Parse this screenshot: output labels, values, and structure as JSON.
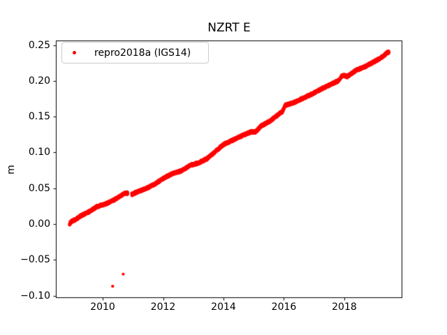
{
  "figure": {
    "background": "#ffffff",
    "text_color": "#000000",
    "spine_color": "#000000"
  },
  "chart_data": {
    "type": "scatter",
    "title": "NZRT E",
    "xlabel": "",
    "ylabel": "m",
    "xlim": [
      2008.45,
      2019.92
    ],
    "ylim": [
      -0.1034,
      0.2564
    ],
    "grid": false,
    "xticks": {
      "values": [
        2010,
        2012,
        2014,
        2016,
        2018
      ],
      "labels": [
        "2010",
        "2012",
        "2014",
        "2016",
        "2018"
      ]
    },
    "yticks": {
      "values": [
        -0.1,
        -0.05,
        0.0,
        0.05,
        0.1,
        0.15,
        0.2,
        0.25
      ],
      "labels": [
        "−0.10",
        "−0.05",
        "0.00",
        "0.05",
        "0.10",
        "0.15",
        "0.20",
        "0.25"
      ]
    },
    "legend": {
      "label": "repro2018a (IGS14)",
      "position": "upper-left",
      "marker_color": "#ff0000",
      "border_color": "#cccccc"
    },
    "series": [
      {
        "name": "repro2018a (IGS14)",
        "color": "#ff0000",
        "marker": "point",
        "marker_radius_px": 2.1,
        "sample_step_years": 0.0028,
        "noise_m": 0.002,
        "trend": {
          "start": [
            2008.9,
            0.0
          ],
          "end": [
            2019.48,
            0.24
          ],
          "rate_m_per_year": 0.0227
        },
        "anchors": [
          [
            2008.9,
            0.0
          ],
          [
            2008.98,
            0.004
          ],
          [
            2009.1,
            0.006
          ],
          [
            2009.3,
            0.012
          ],
          [
            2009.55,
            0.017
          ],
          [
            2009.8,
            0.024
          ],
          [
            2010.1,
            0.028
          ],
          [
            2010.4,
            0.034
          ],
          [
            2010.62,
            0.04
          ],
          [
            2010.75,
            0.043
          ],
          [
            2010.83,
            0.043
          ],
          [
            2010.96,
            0.041
          ],
          [
            2011.1,
            0.044
          ],
          [
            2011.4,
            0.049
          ],
          [
            2011.7,
            0.055
          ],
          [
            2011.95,
            0.062
          ],
          [
            2012.1,
            0.066
          ],
          [
            2012.35,
            0.071
          ],
          [
            2012.6,
            0.074
          ],
          [
            2012.9,
            0.082
          ],
          [
            2013.15,
            0.085
          ],
          [
            2013.45,
            0.091
          ],
          [
            2013.75,
            0.102
          ],
          [
            2014.0,
            0.111
          ],
          [
            2014.3,
            0.117
          ],
          [
            2014.6,
            0.123
          ],
          [
            2014.92,
            0.129
          ],
          [
            2015.05,
            0.128
          ],
          [
            2015.25,
            0.137
          ],
          [
            2015.55,
            0.144
          ],
          [
            2015.85,
            0.154
          ],
          [
            2015.95,
            0.157
          ],
          [
            2016.05,
            0.166
          ],
          [
            2016.35,
            0.17
          ],
          [
            2016.65,
            0.176
          ],
          [
            2016.95,
            0.182
          ],
          [
            2017.25,
            0.189
          ],
          [
            2017.55,
            0.195
          ],
          [
            2017.8,
            0.2
          ],
          [
            2017.95,
            0.208
          ],
          [
            2018.1,
            0.206
          ],
          [
            2018.4,
            0.215
          ],
          [
            2018.7,
            0.22
          ],
          [
            2019.0,
            0.227
          ],
          [
            2019.25,
            0.233
          ],
          [
            2019.4,
            0.239
          ],
          [
            2019.48,
            0.24
          ]
        ],
        "gaps": [
          [
            2010.83,
            2010.96
          ]
        ],
        "outliers": [
          [
            2010.33,
            -0.087
          ],
          [
            2010.68,
            -0.07
          ]
        ]
      }
    ]
  }
}
